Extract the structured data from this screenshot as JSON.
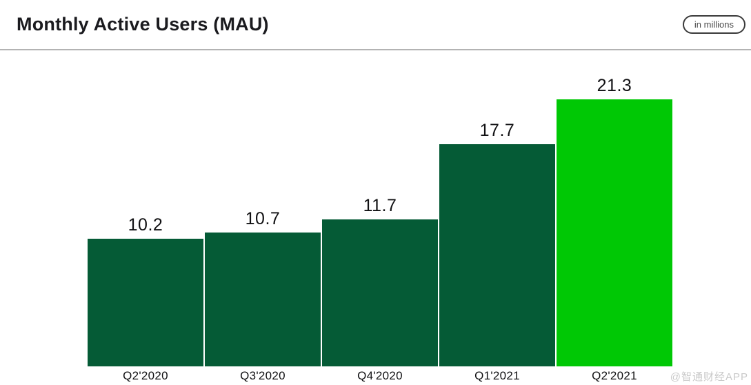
{
  "header": {
    "title": "Monthly Active Users (MAU)",
    "units_badge": "in millions"
  },
  "chart_data": {
    "type": "bar",
    "title": "Monthly Active Users (MAU)",
    "subtitle": "in millions",
    "categories": [
      "Q2'2020",
      "Q3'2020",
      "Q4'2020",
      "Q1'2021",
      "Q2'2021"
    ],
    "values": [
      10.2,
      10.7,
      11.7,
      17.7,
      21.3
    ],
    "value_labels": [
      "10.2",
      "10.7",
      "11.7",
      "17.7",
      "21.3"
    ],
    "bar_colors": [
      "#055b36",
      "#055b36",
      "#055b36",
      "#055b36",
      "#00c805"
    ],
    "highlight_index": 4,
    "xlabel": "",
    "ylabel": "",
    "ylim": [
      0,
      21.3
    ],
    "grid": false,
    "legend_position": "none"
  },
  "colors": {
    "bar_dark_green": "#055b36",
    "bar_bright_green": "#00c805",
    "title_text": "#1b1b1f",
    "divider": "#b3b3b3",
    "badge_border": "#3a3a3a",
    "badge_text": "#4a4a4a",
    "watermark": "#c9c9c9"
  },
  "watermark": "@智通财经APP"
}
